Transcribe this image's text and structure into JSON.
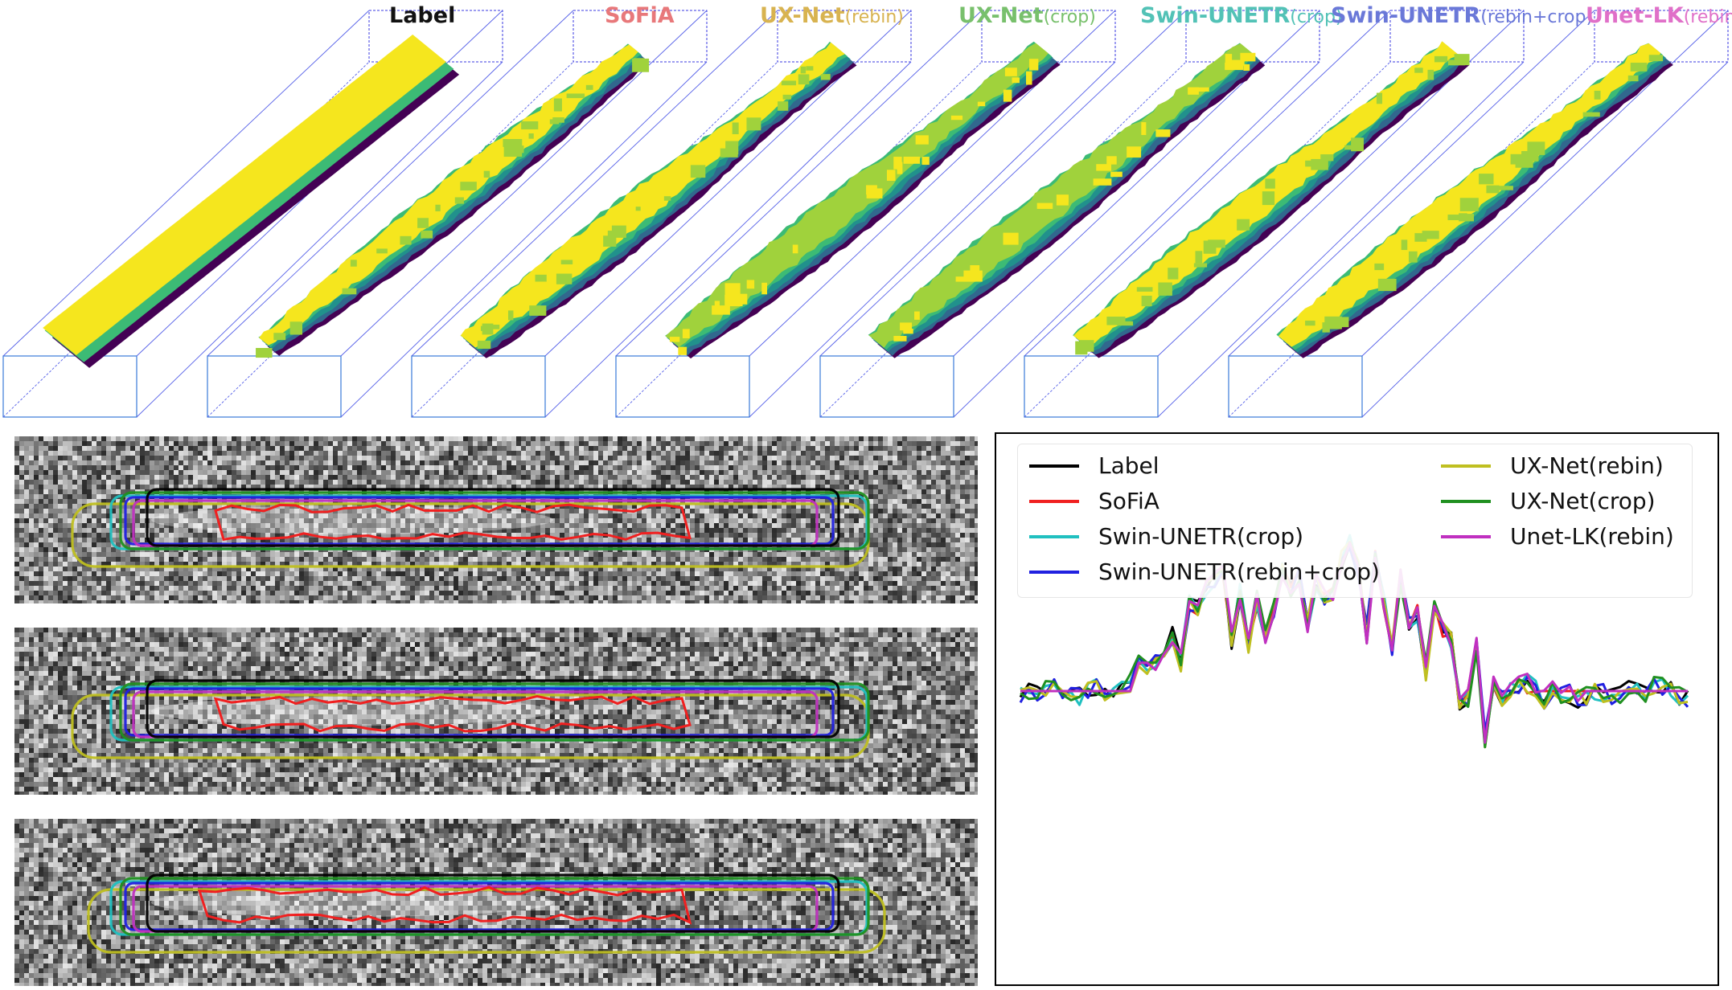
{
  "titles": [
    {
      "main": "Label",
      "suffix": "",
      "color": "#111111"
    },
    {
      "main": "SoFiA",
      "suffix": "",
      "color": "#e8787a"
    },
    {
      "main": "UX-Net",
      "suffix": "(rebin)",
      "color": "#d8b350"
    },
    {
      "main": "UX-Net",
      "suffix": "(crop)",
      "color": "#78c06c"
    },
    {
      "main": "Swin-UNETR",
      "suffix": "(crop)",
      "color": "#52c2b6"
    },
    {
      "main": "Swin-UNETR",
      "suffix": "(rebin+crop)",
      "color": "#6a78d8"
    },
    {
      "main": "Unet-LK",
      "suffix": "(rebin)",
      "color": "#e070c8"
    }
  ],
  "legend": [
    {
      "label": "Label",
      "color": "#000000"
    },
    {
      "label": "SoFiA",
      "color": "#f02020"
    },
    {
      "label": "Swin-UNETR(crop)",
      "color": "#20c0c0"
    },
    {
      "label": "Swin-UNETR(rebin+crop)",
      "color": "#2020e0"
    },
    {
      "label": "UX-Net(rebin)",
      "color": "#bfbf20"
    },
    {
      "label": "UX-Net(crop)",
      "color": "#209020"
    },
    {
      "label": "Unet-LK(rebin)",
      "color": "#c030c0"
    }
  ],
  "colors": {
    "viridis_yellow": "#f5e61e",
    "viridis_lightgreen": "#a0d23c",
    "viridis_green": "#3cbb75",
    "viridis_teal": "#21918c",
    "viridis_blue": "#31688e",
    "viridis_purple": "#440154",
    "box_line": "#3050e0"
  }
}
